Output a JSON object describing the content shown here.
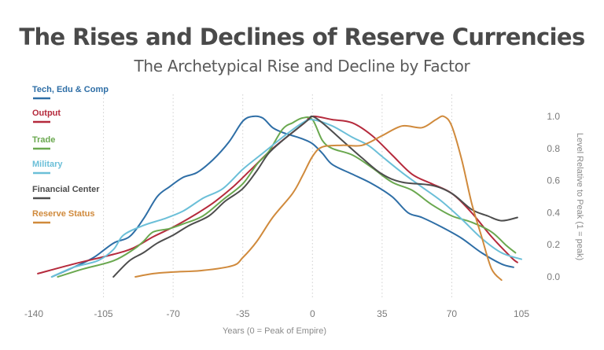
{
  "title": "The Rises and Declines of Reserve Currencies",
  "subtitle": "The Archetypical Rise and Decline by Factor",
  "chart_data": {
    "type": "line",
    "xlabel": "Years (0 = Peak of Empire)",
    "ylabel": "Level Relative to Peak (1 = peak)",
    "xlim": [
      -140,
      105
    ],
    "ylim": [
      0,
      1
    ],
    "x_ticks": [
      "-140",
      "-105",
      "-70",
      "-35",
      "0",
      "35",
      "70",
      "105"
    ],
    "y_ticks": [
      "0.0",
      "0.2",
      "0.4",
      "0.6",
      "0.8",
      "1.0"
    ],
    "grid": "vertical dotted",
    "legend_position": "left",
    "series": [
      {
        "name": "Tech, Edu & Comp",
        "color": "#2e6ea6",
        "points": [
          [
            -131,
            0.0
          ],
          [
            -120,
            0.06
          ],
          [
            -110,
            0.12
          ],
          [
            -100,
            0.21
          ],
          [
            -92,
            0.25
          ],
          [
            -85,
            0.36
          ],
          [
            -78,
            0.5
          ],
          [
            -72,
            0.56
          ],
          [
            -65,
            0.62
          ],
          [
            -58,
            0.65
          ],
          [
            -50,
            0.73
          ],
          [
            -42,
            0.84
          ],
          [
            -35,
            0.97
          ],
          [
            -30,
            1.0
          ],
          [
            -25,
            0.99
          ],
          [
            -20,
            0.93
          ],
          [
            -15,
            0.9
          ],
          [
            -10,
            0.88
          ],
          [
            -5,
            0.86
          ],
          [
            0,
            0.83
          ],
          [
            5,
            0.77
          ],
          [
            10,
            0.7
          ],
          [
            20,
            0.64
          ],
          [
            30,
            0.58
          ],
          [
            40,
            0.5
          ],
          [
            48,
            0.4
          ],
          [
            55,
            0.37
          ],
          [
            65,
            0.31
          ],
          [
            75,
            0.24
          ],
          [
            85,
            0.15
          ],
          [
            95,
            0.08
          ],
          [
            101,
            0.06
          ]
        ]
      },
      {
        "name": "Output",
        "color": "#b52a3c",
        "points": [
          [
            -138,
            0.02
          ],
          [
            -120,
            0.08
          ],
          [
            -100,
            0.14
          ],
          [
            -90,
            0.18
          ],
          [
            -80,
            0.25
          ],
          [
            -70,
            0.31
          ],
          [
            -60,
            0.38
          ],
          [
            -50,
            0.46
          ],
          [
            -40,
            0.56
          ],
          [
            -30,
            0.68
          ],
          [
            -20,
            0.8
          ],
          [
            -10,
            0.9
          ],
          [
            -4,
            0.96
          ],
          [
            0,
            1.0
          ],
          [
            10,
            0.98
          ],
          [
            20,
            0.96
          ],
          [
            30,
            0.88
          ],
          [
            40,
            0.76
          ],
          [
            50,
            0.64
          ],
          [
            60,
            0.58
          ],
          [
            70,
            0.52
          ],
          [
            80,
            0.4
          ],
          [
            90,
            0.25
          ],
          [
            100,
            0.12
          ],
          [
            103,
            0.09
          ]
        ]
      },
      {
        "name": "Trade",
        "color": "#6aa84f",
        "points": [
          [
            -128,
            0.0
          ],
          [
            -115,
            0.05
          ],
          [
            -100,
            0.1
          ],
          [
            -90,
            0.17
          ],
          [
            -85,
            0.22
          ],
          [
            -80,
            0.28
          ],
          [
            -72,
            0.3
          ],
          [
            -65,
            0.33
          ],
          [
            -55,
            0.38
          ],
          [
            -45,
            0.48
          ],
          [
            -35,
            0.58
          ],
          [
            -28,
            0.7
          ],
          [
            -22,
            0.78
          ],
          [
            -15,
            0.92
          ],
          [
            -10,
            0.96
          ],
          [
            -5,
            0.99
          ],
          [
            0,
            0.98
          ],
          [
            5,
            0.85
          ],
          [
            10,
            0.8
          ],
          [
            20,
            0.76
          ],
          [
            30,
            0.68
          ],
          [
            40,
            0.59
          ],
          [
            50,
            0.54
          ],
          [
            60,
            0.45
          ],
          [
            70,
            0.38
          ],
          [
            80,
            0.34
          ],
          [
            90,
            0.28
          ],
          [
            97,
            0.2
          ],
          [
            102,
            0.15
          ]
        ]
      },
      {
        "name": "Military",
        "color": "#6bbfd8",
        "points": [
          [
            -131,
            0.0
          ],
          [
            -120,
            0.06
          ],
          [
            -108,
            0.1
          ],
          [
            -100,
            0.17
          ],
          [
            -95,
            0.26
          ],
          [
            -85,
            0.32
          ],
          [
            -75,
            0.36
          ],
          [
            -65,
            0.41
          ],
          [
            -55,
            0.49
          ],
          [
            -45,
            0.55
          ],
          [
            -35,
            0.67
          ],
          [
            -25,
            0.77
          ],
          [
            -15,
            0.87
          ],
          [
            -5,
            0.96
          ],
          [
            0,
            0.98
          ],
          [
            10,
            0.94
          ],
          [
            20,
            0.87
          ],
          [
            28,
            0.82
          ],
          [
            35,
            0.75
          ],
          [
            45,
            0.65
          ],
          [
            55,
            0.56
          ],
          [
            65,
            0.47
          ],
          [
            75,
            0.36
          ],
          [
            85,
            0.24
          ],
          [
            95,
            0.15
          ],
          [
            105,
            0.11
          ]
        ]
      },
      {
        "name": "Financial Center",
        "color": "#4d4d4d",
        "points": [
          [
            -100,
            0.0
          ],
          [
            -92,
            0.1
          ],
          [
            -85,
            0.15
          ],
          [
            -78,
            0.21
          ],
          [
            -70,
            0.26
          ],
          [
            -62,
            0.32
          ],
          [
            -52,
            0.38
          ],
          [
            -44,
            0.47
          ],
          [
            -35,
            0.55
          ],
          [
            -28,
            0.66
          ],
          [
            -22,
            0.77
          ],
          [
            -15,
            0.85
          ],
          [
            -8,
            0.92
          ],
          [
            -2,
            0.98
          ],
          [
            0,
            1.0
          ],
          [
            5,
            0.96
          ],
          [
            15,
            0.85
          ],
          [
            25,
            0.74
          ],
          [
            35,
            0.64
          ],
          [
            45,
            0.59
          ],
          [
            60,
            0.57
          ],
          [
            70,
            0.52
          ],
          [
            80,
            0.42
          ],
          [
            88,
            0.38
          ],
          [
            95,
            0.35
          ],
          [
            103,
            0.37
          ]
        ]
      },
      {
        "name": "Reserve Status",
        "color": "#d08a3c",
        "points": [
          [
            -89,
            0.0
          ],
          [
            -80,
            0.02
          ],
          [
            -70,
            0.03
          ],
          [
            -55,
            0.04
          ],
          [
            -40,
            0.07
          ],
          [
            -35,
            0.12
          ],
          [
            -28,
            0.22
          ],
          [
            -20,
            0.37
          ],
          [
            -10,
            0.52
          ],
          [
            -5,
            0.63
          ],
          [
            0,
            0.75
          ],
          [
            5,
            0.81
          ],
          [
            15,
            0.82
          ],
          [
            25,
            0.82
          ],
          [
            35,
            0.88
          ],
          [
            45,
            0.94
          ],
          [
            55,
            0.93
          ],
          [
            62,
            0.98
          ],
          [
            66,
            1.0
          ],
          [
            70,
            0.94
          ],
          [
            75,
            0.73
          ],
          [
            80,
            0.46
          ],
          [
            85,
            0.25
          ],
          [
            90,
            0.05
          ],
          [
            95,
            -0.02
          ]
        ]
      }
    ]
  }
}
